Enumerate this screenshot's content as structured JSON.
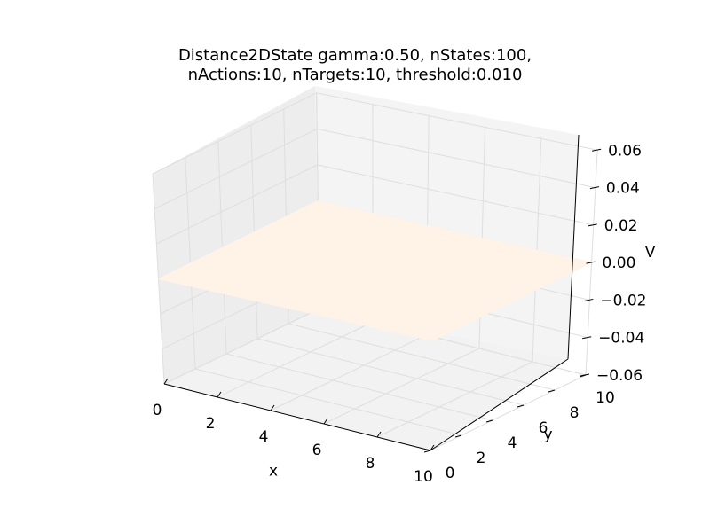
{
  "chart_data": {
    "type": "surface3d",
    "title_line1": "Distance2DState gamma:0.50, nStates:100,",
    "title_line2": "nActions:10, nTargets:10, threshold:0.010",
    "xlabel": "x",
    "ylabel": "y",
    "zlabel": "V",
    "x_ticks": [
      "0",
      "2",
      "4",
      "6",
      "8",
      "10"
    ],
    "y_ticks": [
      "0",
      "2",
      "4",
      "6",
      "8",
      "10"
    ],
    "z_ticks": [
      "−0.06",
      "−0.04",
      "−0.02",
      "0.00",
      "0.02",
      "0.04",
      "0.06"
    ],
    "xlim": [
      0,
      10
    ],
    "ylim": [
      0,
      10
    ],
    "zlim": [
      -0.06,
      0.06
    ],
    "surface": {
      "z_value": 0.0,
      "color": "#fff3e8"
    },
    "pane_color": "#f2f2f2",
    "grid": true
  }
}
